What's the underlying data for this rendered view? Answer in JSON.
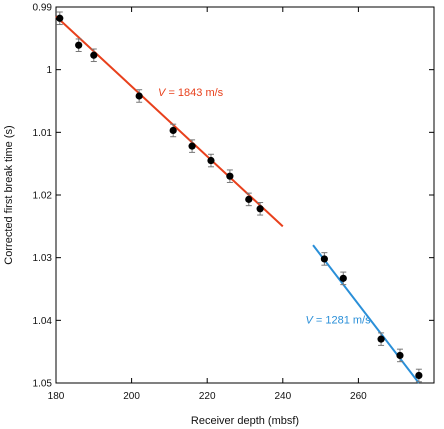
{
  "chart_data": {
    "type": "scatter",
    "title": "",
    "xlabel": "Receiver depth (mbsf)",
    "ylabel": "Corrected first break time (s)",
    "xlim": [
      180,
      280
    ],
    "ylim": [
      0.99,
      1.05
    ],
    "y_inverted": true,
    "grid": false,
    "x_ticks": [
      180,
      200,
      220,
      240,
      260
    ],
    "x_tick_labels": [
      "180",
      "200",
      "220",
      "240",
      "260"
    ],
    "y_ticks": [
      0.99,
      1.0,
      1.01,
      1.02,
      1.03,
      1.04,
      1.05
    ],
    "y_tick_labels": [
      "0.99",
      "1",
      "1.01",
      "1.02",
      "1.03",
      "1.04",
      "1.05"
    ],
    "series": [
      {
        "color": "#e8401c",
        "x": [
          181,
          186,
          190,
          202,
          211,
          216,
          221,
          226,
          231,
          234
        ],
        "y": [
          0.9918,
          0.9961,
          0.9977,
          1.0042,
          1.0097,
          1.0122,
          1.0145,
          1.017,
          1.0207,
          1.0222
        ],
        "err": [
          0.001,
          0.001,
          0.001,
          0.001,
          0.001,
          0.001,
          0.001,
          0.001,
          0.001,
          0.001
        ]
      },
      {
        "color": "#2a8fd8",
        "x": [
          251,
          256,
          266,
          271,
          276
        ],
        "y": [
          1.0302,
          1.0333,
          1.043,
          1.0456,
          1.0488
        ],
        "err": [
          0.001,
          0.001,
          0.001,
          0.001,
          0.001
        ]
      }
    ],
    "fit_lines": [
      {
        "color": "#e8401c",
        "x": [
          180,
          240
        ],
        "y": [
          0.9915,
          1.025
        ]
      },
      {
        "color": "#2a8fd8",
        "x": [
          248,
          276
        ],
        "y": [
          1.028,
          1.05
        ]
      }
    ],
    "annotations": [
      {
        "var": "V",
        "text": " = 1843 m/s",
        "color": "#e8401c",
        "x": 207,
        "y": 1.0042
      },
      {
        "var": "V",
        "text": " = 1281 m/s",
        "color": "#2a8fd8",
        "x": 246,
        "y": 1.0405
      }
    ]
  }
}
